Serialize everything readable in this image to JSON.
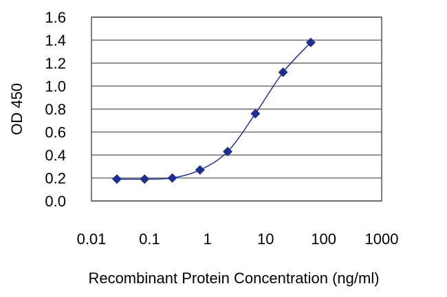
{
  "chart_data": {
    "type": "line",
    "title": "",
    "xlabel": "Recombinant Protein Concentration (ng/ml)",
    "ylabel": "OD 450",
    "x_scale": "log",
    "xlim": [
      0.01,
      1000
    ],
    "ylim": [
      0,
      1.6
    ],
    "x_ticks": [
      "0.01",
      "0.1",
      "1",
      "10",
      "100",
      "1000"
    ],
    "y_ticks": [
      "0.0",
      "0.2",
      "0.4",
      "0.6",
      "0.8",
      "1.0",
      "1.2",
      "1.4",
      "1.6"
    ],
    "grid": "horizontal",
    "series": [
      {
        "color": "#1f2f8f",
        "marker": "diamond",
        "x": [
          0.0274,
          0.0823,
          0.247,
          0.741,
          2.22,
          6.67,
          20,
          60
        ],
        "y": [
          0.19,
          0.19,
          0.2,
          0.27,
          0.43,
          0.76,
          1.12,
          1.38
        ]
      }
    ]
  }
}
